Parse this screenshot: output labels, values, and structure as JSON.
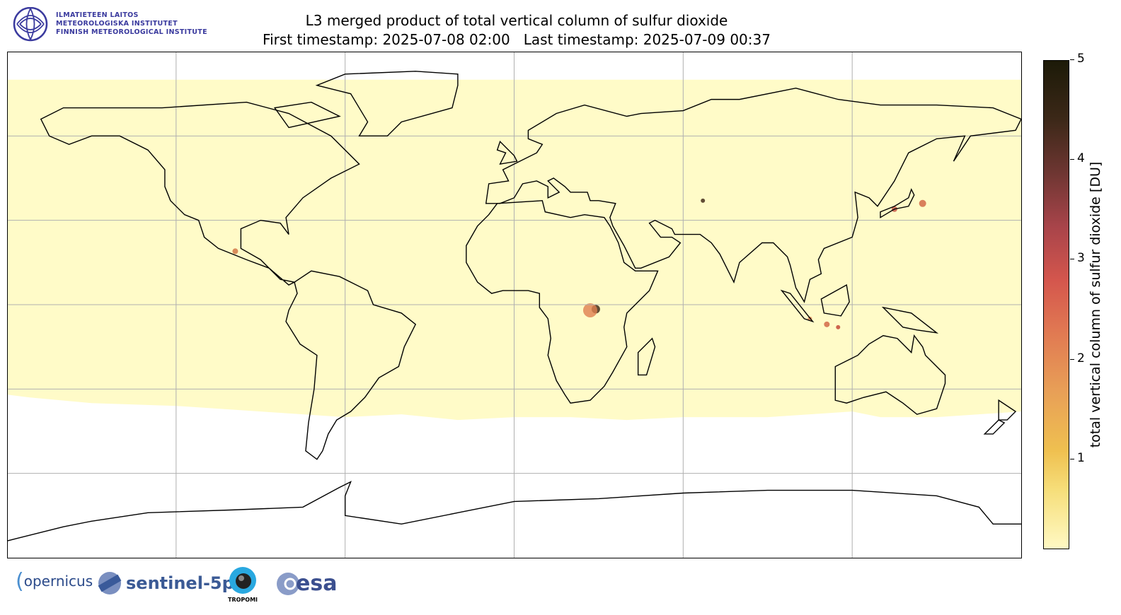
{
  "header": {
    "title": "L3 merged product of total vertical column of sulfur dioxide",
    "subtitle": "First timestamp: 2025-07-08 02:00   Last timestamp: 2025-07-09 00:37"
  },
  "institute_logo": {
    "lines": [
      "ILMATIETEEN LAITOS",
      "METEOROLOGISKA INSTITUTET",
      "FINNISH METEOROLOGICAL INSTITUTE"
    ],
    "color": "#3a3a9e"
  },
  "map": {
    "projection": "plate-carree",
    "extent": {
      "lon": [
        -180,
        180
      ],
      "lat": [
        -90,
        90
      ]
    },
    "gridlines_lon": [
      -120,
      -60,
      0,
      60,
      120
    ],
    "gridlines_lat": [
      -60,
      -30,
      0,
      30,
      60
    ],
    "data_fill_color": "#fffbc8",
    "no_data_color": "#ffffff"
  },
  "colorbar": {
    "label": "total vertical column of sulfur dioxide [DU]",
    "ticks": [
      "1",
      "2",
      "3",
      "4",
      "5"
    ],
    "range": [
      0.1,
      5
    ],
    "colormap": [
      "#fff9c4",
      "#efc050",
      "#e07752",
      "#d4564d",
      "#6e3632",
      "#1c1a08"
    ]
  },
  "footer_logos": {
    "copernicus": "opernicus",
    "sentinel": "sentinel-5p",
    "tropomi": "TROPOMI",
    "esa": "esa"
  }
}
